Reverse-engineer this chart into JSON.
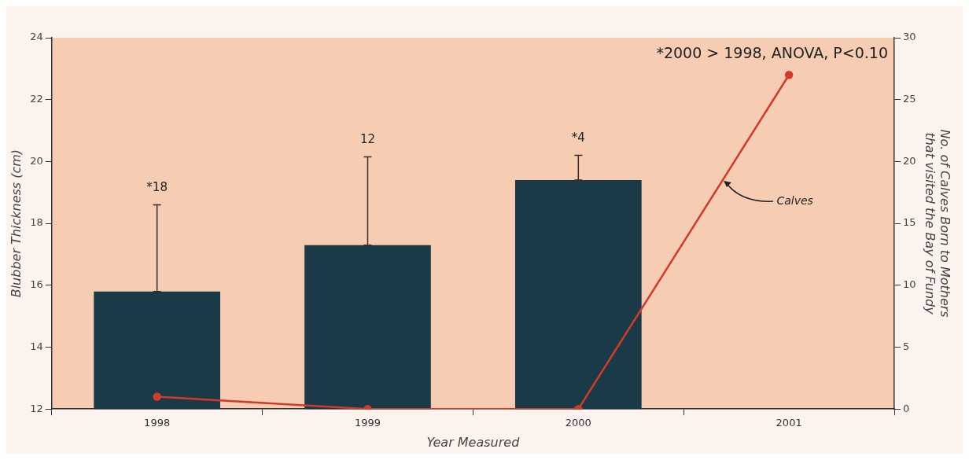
{
  "chart_data": {
    "type": "bar",
    "categories": [
      "1998",
      "1999",
      "2000",
      "2001"
    ],
    "xlabel": "Year Measured",
    "ylabel": "Blubber Thickness (cm)",
    "y2label": "No. of Calves Born to Mothers\nthat visited the Bay of Fundy",
    "series": [
      {
        "color": "#1b3a47",
        "values": [
          15.8,
          17.3,
          19.4,
          null
        ],
        "errors": [
          [
            15.8,
            18.6
          ],
          [
            17.3,
            20.15
          ],
          [
            19.4,
            20.2
          ],
          null
        ]
      },
      {
        "type": "line",
        "name": "Calves",
        "color": "#d23a2a",
        "axis": "y2",
        "values": [
          1,
          0,
          0,
          27
        ],
        "marker": "circle"
      }
    ],
    "ylim": [
      12,
      24
    ],
    "yticks": [
      12,
      14,
      16,
      18,
      20,
      22,
      24
    ],
    "y2lim": [
      0,
      30
    ],
    "y2ticks": [
      0,
      5,
      10,
      15,
      20,
      25,
      30
    ],
    "annotations": [
      {
        "text": "*18",
        "x": "1998",
        "y": 18.6
      },
      {
        "text": "12",
        "x": "1999",
        "y": 20.15
      },
      {
        "text": "*4",
        "x": "2000",
        "y": 20.2
      },
      "*2000 > 1998, ANOVA, P<0.10"
    ],
    "grid": false,
    "legend": false
  }
}
